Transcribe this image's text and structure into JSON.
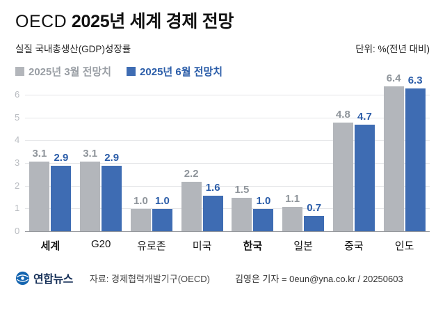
{
  "title": {
    "prefix": "OECD",
    "main": " 2025년 세계 경제 전망"
  },
  "subtitle": "실질 국내총생산(GDP)성장률",
  "unit_note": "단위: %(전년 대비)",
  "legend": [
    {
      "label": "2025년 3월 전망치",
      "color": "#b3b6bb",
      "text_color": "#999ea4"
    },
    {
      "label": "2025년 6월 전망치",
      "color": "#3e6cb3",
      "text_color": "#2a5ca8"
    }
  ],
  "chart_data": {
    "type": "bar",
    "title": "OECD 2025년 세계 경제 전망",
    "subtitle": "실질 국내총생산(GDP)성장률",
    "unit": "%(전년 대비)",
    "categories": [
      "세계",
      "G20",
      "유로존",
      "미국",
      "한국",
      "일본",
      "중국",
      "인도"
    ],
    "bold_categories": [
      "세계",
      "한국"
    ],
    "series": [
      {
        "name": "2025년 3월 전망치",
        "color": "#b3b6bb",
        "label_color": "#8f959b",
        "values": [
          3.1,
          3.1,
          1.0,
          2.2,
          1.5,
          1.1,
          4.8,
          6.4
        ]
      },
      {
        "name": "2025년 6월 전망치",
        "color": "#3e6cb3",
        "label_color": "#2a5ca8",
        "values": [
          2.9,
          2.9,
          1.0,
          1.6,
          1.0,
          0.7,
          4.7,
          6.3
        ]
      }
    ],
    "ylim": [
      0,
      6
    ],
    "yticks": [
      0,
      1,
      2,
      3,
      4,
      5,
      6
    ],
    "grid": true,
    "legend_position": "top-left"
  },
  "footer": {
    "logo_text": "연합뉴스",
    "source": "자료: 경제협력개발기구(OECD)",
    "credit": "김영은 기자 = 0eun@yna.co.kr / 20250603"
  }
}
